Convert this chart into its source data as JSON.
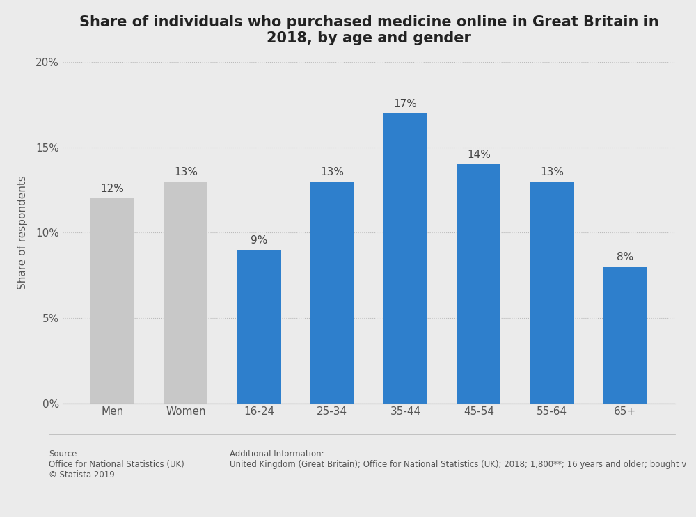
{
  "title": "Share of individuals who purchased medicine online in Great Britain in\n2018, by age and gender",
  "categories": [
    "Men",
    "Women",
    "16-24",
    "25-34",
    "35-44",
    "45-54",
    "55-64",
    "65+"
  ],
  "values": [
    12,
    13,
    9,
    13,
    17,
    14,
    13,
    8
  ],
  "bar_colors": [
    "#c8c8c8",
    "#c8c8c8",
    "#2e7fcc",
    "#2e7fcc",
    "#2e7fcc",
    "#2e7fcc",
    "#2e7fcc",
    "#2e7fcc"
  ],
  "ylabel": "Share of respondents",
  "ylim": [
    0,
    20
  ],
  "yticks": [
    0,
    5,
    10,
    15,
    20
  ],
  "ytick_labels": [
    "0%",
    "5%",
    "10%",
    "15%",
    "20%"
  ],
  "background_color": "#ebebeb",
  "plot_bg_color": "#ebebeb",
  "grid_color": "#bbbbbb",
  "title_fontsize": 15,
  "label_fontsize": 11,
  "tick_fontsize": 11,
  "bar_label_fontsize": 11,
  "source_text": "Source\nOffice for National Statistics (UK)\n© Statista 2019",
  "additional_text": "Additional Information:\nUnited Kingdom (Great Britain); Office for National Statistics (UK); 2018; 1,800**; 16 years and older; bought v"
}
